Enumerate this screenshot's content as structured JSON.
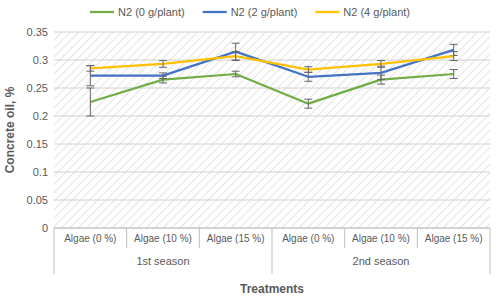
{
  "chart_data": {
    "type": "line",
    "y_label": "Concrete oil, %",
    "x_label": "Treatments",
    "categories": [
      "Algae (0 %)",
      "Algae (10 %)",
      "Algae (15 %)",
      "Algae (0 %)",
      "Algae (10 %)",
      "Algae (15 %)"
    ],
    "category_groups": [
      "1st season",
      "2nd season"
    ],
    "series": [
      {
        "name": "N2 (0 g/plant)",
        "color": "#70ad47",
        "values": [
          0.225,
          0.265,
          0.275,
          0.222,
          0.265,
          0.275
        ],
        "errors": [
          0.025,
          0.006,
          0.005,
          0.008,
          0.008,
          0.008
        ]
      },
      {
        "name": "N2 (2 g/plant)",
        "color": "#4472c4",
        "values": [
          0.272,
          0.272,
          0.315,
          0.27,
          0.277,
          0.318
        ],
        "errors": [
          0.018,
          0.005,
          0.015,
          0.008,
          0.012,
          0.01
        ]
      },
      {
        "name": "N2 (4 g/plant)",
        "color": "#ffc000",
        "values": [
          0.285,
          0.293,
          0.307,
          0.283,
          0.293,
          0.307
        ],
        "errors": [
          0.005,
          0.006,
          0.008,
          0.005,
          0.006,
          0.008
        ]
      }
    ],
    "ylim": [
      0,
      0.35
    ],
    "yticks": [
      0,
      0.05,
      0.1,
      0.15,
      0.2,
      0.25,
      0.3,
      0.35
    ],
    "grid": true,
    "legend": "top"
  }
}
